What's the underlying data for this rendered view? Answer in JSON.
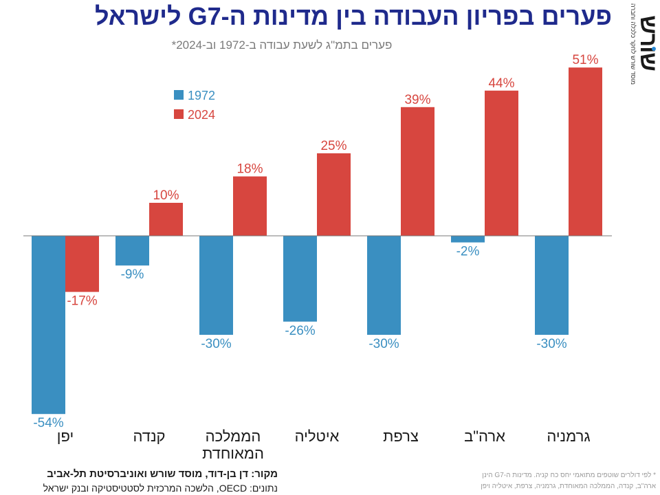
{
  "title": "פערים בפריון העבודה בין מדינות ה-G7 לישראל",
  "subtitle": "פערים בתמ\"ג לשעת עבודה ב-1972 וב-2024*",
  "logo": {
    "name": "שורש",
    "tagline": "מוסד שורש לחקר כלכלה וחברה"
  },
  "source": {
    "line1": "מקור: דן בן-דוד, מוסד שורש ואוניברסיטת תל-אביב",
    "line2": "נתונים: OECD, הלשכה המרכזית לסטטיסטיקה ובנק ישראל"
  },
  "footnote": {
    "line1": "* לפי דולרים שוטפים מתואמי יחס כח קניה. מדינות ה-G7 הינן",
    "line2": "ארה\"ב, קנדה, הממלכה המאוחדת, גרמניה, צרפת, איטליה ויפן"
  },
  "colors": {
    "series_1972": "#3a8fc1",
    "series_2024": "#d7463f",
    "title": "#1f2a8c"
  },
  "chart_data": {
    "type": "bar",
    "title": "פערים בפריון העבודה בין מדינות ה-G7 לישראל",
    "subtitle": "פערים בתמ\"ג לשעת עבודה ב-1972 וב-2024*",
    "categories": [
      "יפן",
      "קנדה",
      "הממלכה המאוחדת",
      "איטליה",
      "צרפת",
      "ארה\"ב",
      "גרמניה"
    ],
    "category_lines": [
      [
        "יפן"
      ],
      [
        "קנדה"
      ],
      [
        "הממלכה",
        "המאוחדת"
      ],
      [
        "איטליה"
      ],
      [
        "צרפת"
      ],
      [
        "ארה\"ב"
      ],
      [
        "גרמניה"
      ]
    ],
    "series": [
      {
        "name": "1972",
        "color": "#3a8fc1",
        "values": [
          -54,
          -9,
          -30,
          -26,
          -30,
          -2,
          -30
        ],
        "labels": [
          "-54%",
          "-9%",
          "-30%",
          "-26%",
          "-30%",
          "-2%",
          "-30%"
        ]
      },
      {
        "name": "2024",
        "color": "#d7463f",
        "values": [
          -17,
          10,
          18,
          25,
          39,
          44,
          51
        ],
        "labels": [
          "-17%",
          "10%",
          "18%",
          "25%",
          "39%",
          "44%",
          "51%"
        ]
      }
    ],
    "ylim": [
      -54,
      51
    ],
    "unit": "%",
    "grid": false,
    "legend": "top-left"
  }
}
